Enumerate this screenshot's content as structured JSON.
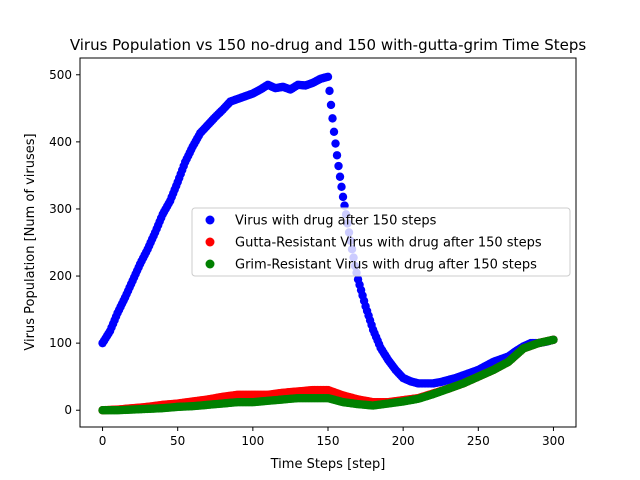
{
  "chart_data": {
    "type": "scatter",
    "title": "Virus Population vs 150 no-drug and 150 with-gutta-grim Time Steps",
    "xlabel": "Time Steps [step]",
    "ylabel": "Virus Population [Num of viruses]",
    "xlim": [
      -15,
      315
    ],
    "ylim": [
      -25,
      525
    ],
    "xticks": [
      0,
      50,
      100,
      150,
      200,
      250,
      300
    ],
    "yticks": [
      0,
      100,
      200,
      300,
      400,
      500
    ],
    "grid": false,
    "legend_position": "center-right",
    "series": [
      {
        "name": "Virus with drug after 150 steps",
        "color": "#0000ff",
        "x": [
          0,
          5,
          10,
          15,
          20,
          25,
          30,
          35,
          40,
          45,
          50,
          55,
          60,
          65,
          70,
          75,
          80,
          85,
          90,
          95,
          100,
          105,
          110,
          115,
          120,
          125,
          130,
          135,
          140,
          145,
          150,
          152,
          154,
          156,
          158,
          160,
          162,
          164,
          166,
          168,
          170,
          175,
          180,
          185,
          190,
          195,
          200,
          205,
          210,
          215,
          220,
          225,
          230,
          235,
          240,
          245,
          250,
          255,
          260,
          265,
          270,
          275,
          280,
          285,
          290,
          295,
          300
        ],
        "y": [
          100,
          118,
          145,
          168,
          193,
          218,
          240,
          265,
          292,
          312,
          340,
          370,
          393,
          413,
          425,
          437,
          448,
          460,
          464,
          468,
          472,
          478,
          485,
          480,
          482,
          478,
          485,
          484,
          488,
          494,
          497,
          455,
          415,
          380,
          348,
          318,
          292,
          265,
          240,
          215,
          195,
          155,
          120,
          93,
          75,
          60,
          48,
          43,
          40,
          40,
          40,
          42,
          45,
          48,
          52,
          56,
          60,
          66,
          72,
          76,
          80,
          88,
          95,
          100,
          100,
          102,
          105
        ]
      },
      {
        "name": "Gutta-Resistant Virus with drug after 150 steps",
        "color": "#ff0000",
        "x": [
          0,
          10,
          20,
          30,
          40,
          50,
          60,
          70,
          80,
          90,
          100,
          110,
          120,
          130,
          140,
          150,
          160,
          170,
          180,
          190,
          200,
          210,
          220,
          230,
          240,
          250,
          260,
          270,
          280,
          290,
          300
        ],
        "y": [
          0,
          1,
          3,
          5,
          8,
          10,
          13,
          16,
          20,
          23,
          23,
          23,
          26,
          28,
          30,
          30,
          22,
          16,
          12,
          12,
          15,
          18,
          25,
          32,
          40,
          50,
          60,
          72,
          92,
          100,
          105
        ]
      },
      {
        "name": "Grim-Resistant Virus with drug after 150 steps",
        "color": "#008000",
        "x": [
          0,
          10,
          20,
          30,
          40,
          50,
          60,
          70,
          80,
          90,
          100,
          110,
          120,
          130,
          140,
          150,
          160,
          170,
          180,
          190,
          200,
          210,
          220,
          230,
          240,
          250,
          260,
          270,
          280,
          290,
          300
        ],
        "y": [
          0,
          0,
          1,
          2,
          3,
          5,
          6,
          8,
          10,
          12,
          12,
          14,
          16,
          18,
          18,
          18,
          12,
          9,
          7,
          10,
          13,
          17,
          24,
          32,
          40,
          50,
          60,
          72,
          92,
          100,
          105
        ]
      }
    ]
  }
}
